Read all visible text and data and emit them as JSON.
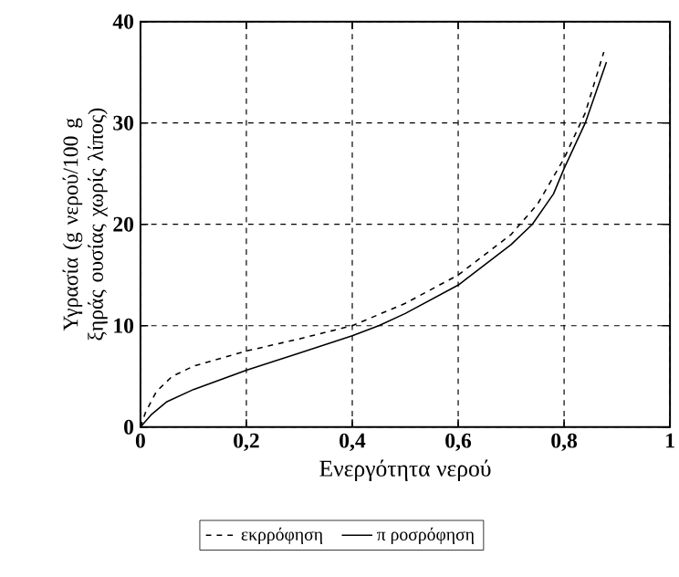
{
  "chart_data": {
    "type": "line",
    "xlabel": "Ενεργότητα νερού",
    "ylabel": "Υγρασία (g νερού/100 g ξηράς ουσίας χωρίς λίπος)",
    "xlim": [
      0,
      1
    ],
    "ylim": [
      0,
      40
    ],
    "xticks": [
      0,
      {
        "value": 0.2,
        "label": "0,2"
      },
      {
        "value": 0.4,
        "label": "0,4"
      },
      {
        "value": 0.6,
        "label": "0,6"
      },
      {
        "value": 0.8,
        "label": "0,8"
      },
      1
    ],
    "yticks": [
      0,
      10,
      20,
      30,
      40
    ],
    "grid": true,
    "legend": "bottom",
    "marker": "none",
    "series": [
      {
        "name": "εκρρόφηση",
        "color": "#000000",
        "line_style": "dashed",
        "x": [
          0,
          0.01,
          0.03,
          0.06,
          0.1,
          0.2,
          0.3,
          0.4,
          0.5,
          0.6,
          0.7,
          0.75,
          0.8,
          0.84,
          0.875
        ],
        "values": [
          0,
          1.5,
          3.5,
          5,
          6,
          7.5,
          8.7,
          10,
          12.2,
          15,
          19,
          22,
          26.5,
          31,
          37
        ]
      },
      {
        "name": "π ροσρόφηση",
        "color": "#000000",
        "line_style": "solid",
        "x": [
          0,
          0.02,
          0.05,
          0.1,
          0.2,
          0.3,
          0.4,
          0.45,
          0.5,
          0.6,
          0.7,
          0.74,
          0.78,
          0.8,
          0.84,
          0.88
        ],
        "values": [
          0,
          1.2,
          2.5,
          3.7,
          5.6,
          7.3,
          9,
          10,
          11.2,
          14,
          18,
          20,
          23,
          25.5,
          30,
          36
        ]
      }
    ]
  }
}
